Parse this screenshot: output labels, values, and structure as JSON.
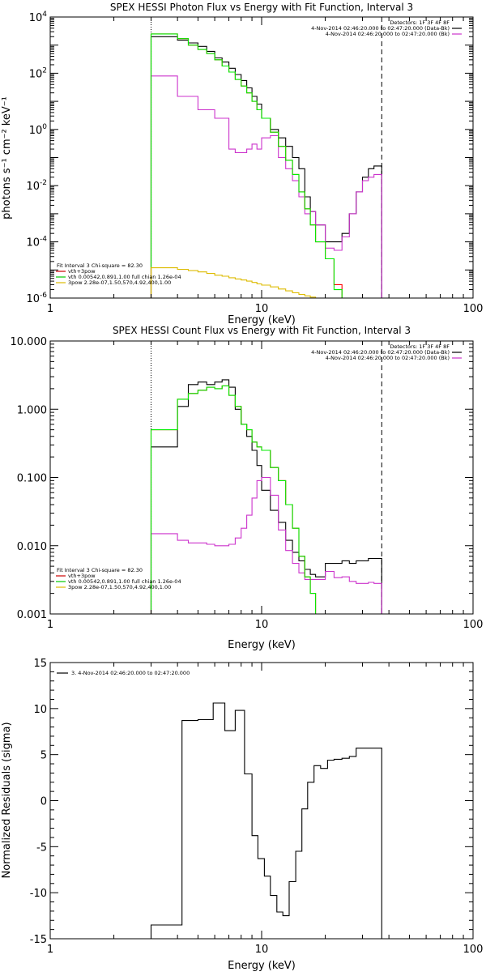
{
  "chart_data": [
    {
      "type": "line",
      "title": "SPEX HESSI Photon Flux vs Energy with Fit Function, Interval 3",
      "xlabel": "Energy (keV)",
      "ylabel": "photons s⁻¹ cm⁻² keV⁻¹",
      "xscale": "log",
      "yscale": "log",
      "xlim": [
        1,
        100
      ],
      "ylim": [
        1e-06,
        10000.0
      ],
      "xticks": [
        {
          "value": 1,
          "label": "1"
        },
        {
          "value": 10,
          "label": "10"
        },
        {
          "value": 100,
          "label": "100"
        }
      ],
      "yticks": [
        {
          "value": 1e-06,
          "base": "10",
          "exp": "-6"
        },
        {
          "value": 0.0001,
          "base": "10",
          "exp": "-4"
        },
        {
          "value": 0.01,
          "base": "10",
          "exp": "-2"
        },
        {
          "value": 1,
          "base": "10",
          "exp": "0"
        },
        {
          "value": 100,
          "base": "10",
          "exp": "2"
        },
        {
          "value": 10000.0,
          "base": "10",
          "exp": "4"
        }
      ],
      "vlines": [
        {
          "x": 3.0,
          "style": "dotted"
        },
        {
          "x": 37,
          "style": "dashed"
        }
      ],
      "legend_right": [
        "Detectors: 1F 3F 4F 8F",
        "4-Nov-2014 02:46:20.000 to 02:47:20.000 (Data-Bk)",
        "4-Nov-2014 02:46:20.000 to 02:47:20.000 (Bk)"
      ],
      "legend_left": [
        "Fit Interval 3   Chi-square = 82.30",
        "vth+3pow",
        "vth 0.00542,0.891,1.00  full chian 1.26e-04",
        "3pow 2.28e-07,1.50,570,4.92,400,1.00"
      ],
      "edges": [
        3.0,
        3.5,
        4.0,
        4.5,
        5.0,
        5.5,
        6.0,
        6.5,
        7.0,
        7.5,
        8.0,
        8.5,
        9.0,
        9.5,
        10.0,
        11.0,
        12.0,
        13.0,
        14.0,
        15.0,
        16.0,
        17.0,
        18.0,
        20.0,
        22.0,
        24.0,
        26.0,
        28.0,
        30.0,
        32.0,
        34.0,
        37.0
      ],
      "series": [
        {
          "name": "4-Nov-2014 02:46:20.000 to 02:47:20.000 (Data-Bk)",
          "color": "#000000",
          "values": [
            2000,
            2000,
            1500,
            1200,
            900,
            600,
            350,
            250,
            150,
            90,
            55,
            30,
            15,
            8,
            2.5,
            1.0,
            0.5,
            0.25,
            0.1,
            0.04,
            0.004,
            0.0012,
            0.0004,
            0.0001,
            0.0001,
            0.0002,
            0.001,
            0.006,
            0.02,
            0.04,
            0.05
          ]
        },
        {
          "name": "4-Nov-2014 02:46:20.000 to 02:47:20.000 (Bk)",
          "color": "#cc33cc",
          "values": [
            80,
            80,
            15,
            15,
            5,
            5,
            2.5,
            2.5,
            0.2,
            0.15,
            0.15,
            0.2,
            0.3,
            0.2,
            0.5,
            0.6,
            0.1,
            0.04,
            0.015,
            0.004,
            0.001,
            0.0012,
            0.0004,
            6e-05,
            5e-05,
            0.00015,
            0.001,
            0.006,
            0.015,
            0.02,
            0.025
          ]
        },
        {
          "name": "vth+3pow",
          "color": "#ff0000",
          "values": [
            2500,
            2500,
            1700,
            1000,
            700,
            500,
            300,
            180,
            110,
            60,
            35,
            20,
            10,
            5,
            2.5,
            0.8,
            0.25,
            0.08,
            0.025,
            0.006,
            0.0015,
            0.0004,
            0.0001,
            2.5e-05,
            3e-06,
            null,
            null,
            null,
            null,
            null,
            null
          ]
        },
        {
          "name": "vth 0.00542,0.891,1.00  full chian 1.26e-04",
          "color": "#00ee00",
          "values": [
            2500,
            2500,
            1700,
            1000,
            700,
            500,
            300,
            180,
            110,
            60,
            35,
            20,
            10,
            5,
            2.5,
            0.8,
            0.25,
            0.08,
            0.025,
            0.006,
            0.0015,
            0.0004,
            0.0001,
            2.5e-05,
            2e-06,
            null,
            null,
            null,
            null,
            null,
            null
          ]
        },
        {
          "name": "3pow 2.28e-07,1.50,570,4.92,400,1.00",
          "color": "#ddbb00",
          "values": [
            1.2e-05,
            1.2e-05,
            1.05e-05,
            9.5e-06,
            8.5e-06,
            7.5e-06,
            6.5e-06,
            6e-06,
            5.3e-06,
            4.8e-06,
            4.4e-06,
            4e-06,
            3.6e-06,
            3.2e-06,
            2.9e-06,
            2.5e-06,
            2.1e-06,
            1.8e-06,
            1.55e-06,
            1.35e-06,
            1.2e-06,
            1.08e-06,
            1e-06,
            null,
            null,
            null,
            null,
            null,
            null,
            null,
            null
          ]
        }
      ]
    },
    {
      "type": "line",
      "title": "SPEX HESSI Count Flux vs Energy with Fit Function, Interval 3",
      "xlabel": "Energy (keV)",
      "ylabel": "",
      "xscale": "log",
      "yscale": "log",
      "xlim": [
        1,
        100
      ],
      "ylim": [
        0.001,
        10
      ],
      "xticks": [
        {
          "value": 1,
          "label": "1"
        },
        {
          "value": 10,
          "label": "10"
        },
        {
          "value": 100,
          "label": "100"
        }
      ],
      "yticks": [
        {
          "value": 0.001,
          "label": "0.001"
        },
        {
          "value": 0.01,
          "label": "0.010"
        },
        {
          "value": 0.1,
          "label": "0.100"
        },
        {
          "value": 1,
          "label": "1.000"
        },
        {
          "value": 10,
          "label": "10.000"
        }
      ],
      "vlines": [
        {
          "x": 3.0,
          "style": "dotted"
        },
        {
          "x": 37,
          "style": "dashed"
        }
      ],
      "legend_right": [
        "Detectors: 1F 3F 4F 8F",
        "4-Nov-2014 02:46:20.000 to 02:47:20.000 (Data-Bk)",
        "4-Nov-2014 02:46:20.000 to 02:47:20.000 (Bk)"
      ],
      "legend_left": [
        "Fit Interval 3   Chi-square = 82.30",
        "vth+3pow",
        "vth 0.00542,0.891,1.00  full chian 1.26e-04",
        "3pow 2.28e-07,1.50,570,4.92,400,1.00"
      ],
      "edges": [
        3.0,
        3.5,
        4.0,
        4.5,
        5.0,
        5.5,
        6.0,
        6.5,
        7.0,
        7.5,
        8.0,
        8.5,
        9.0,
        9.5,
        10.0,
        11.0,
        12.0,
        13.0,
        14.0,
        15.0,
        16.0,
        17.0,
        18.0,
        20.0,
        22.0,
        24.0,
        26.0,
        28.0,
        30.0,
        32.0,
        34.0,
        37.0
      ],
      "series": [
        {
          "name": "4-Nov-2014 02:46:20.000 to 02:47:20.000 (Data-Bk)",
          "color": "#000000",
          "values": [
            0.28,
            0.28,
            1.1,
            2.3,
            2.5,
            2.3,
            2.5,
            2.7,
            2.1,
            1.0,
            0.6,
            0.4,
            0.25,
            0.15,
            0.065,
            0.033,
            0.022,
            0.012,
            0.008,
            0.006,
            0.0045,
            0.0038,
            0.0035,
            0.0055,
            0.0055,
            0.006,
            0.0055,
            0.006,
            0.006,
            0.0065,
            0.0065
          ]
        },
        {
          "name": "4-Nov-2014 02:46:20.000 to 02:47:20.000 (Bk)",
          "color": "#cc33cc",
          "values": [
            0.015,
            0.015,
            0.012,
            0.011,
            0.011,
            0.0105,
            0.01,
            0.01,
            0.0105,
            0.013,
            0.018,
            0.028,
            0.05,
            0.09,
            0.1,
            0.055,
            0.017,
            0.0085,
            0.0055,
            0.004,
            0.0032,
            0.0032,
            0.0032,
            0.0042,
            0.0034,
            0.0035,
            0.003,
            0.0028,
            0.0028,
            0.0029,
            0.0028
          ]
        },
        {
          "name": "vth+3pow",
          "color": "#ff0000",
          "values": [
            0.5,
            0.5,
            1.4,
            1.7,
            1.9,
            2.1,
            2.0,
            2.2,
            1.6,
            1.1,
            0.6,
            0.5,
            0.33,
            0.28,
            0.25,
            0.14,
            0.09,
            0.04,
            0.018,
            0.007,
            0.0035,
            0.002,
            0.0009,
            null,
            null,
            null,
            null,
            null,
            null,
            null,
            null
          ]
        },
        {
          "name": "vth 0.00542,0.891,1.00  full chian 1.26e-04",
          "color": "#00ee00",
          "values": [
            0.5,
            0.5,
            1.4,
            1.7,
            1.9,
            2.1,
            2.0,
            2.2,
            1.6,
            1.1,
            0.6,
            0.5,
            0.33,
            0.28,
            0.25,
            0.14,
            0.09,
            0.04,
            0.018,
            0.007,
            0.0035,
            0.002,
            0.0009,
            null,
            null,
            null,
            null,
            null,
            null,
            null,
            null
          ]
        }
      ]
    },
    {
      "type": "line",
      "title": "",
      "xlabel": "Energy (keV)",
      "ylabel": "Normalized Residuals (sigma)",
      "xscale": "log",
      "yscale": "linear",
      "xlim": [
        1,
        100
      ],
      "ylim": [
        -15,
        15
      ],
      "xticks": [
        {
          "value": 1,
          "label": "1"
        },
        {
          "value": 10,
          "label": "10"
        },
        {
          "value": 100,
          "label": "100"
        }
      ],
      "yticks": [
        {
          "value": -15,
          "label": "-15"
        },
        {
          "value": -10,
          "label": "-10"
        },
        {
          "value": -5,
          "label": "-5"
        },
        {
          "value": 0,
          "label": "0"
        },
        {
          "value": 5,
          "label": "5"
        },
        {
          "value": 10,
          "label": "10"
        },
        {
          "value": 15,
          "label": "15"
        }
      ],
      "legend_left": [
        "3.  4-Nov-2014 02:46:20.000 to 02:47:20.000"
      ],
      "edges": [
        3.0,
        4.2,
        5.0,
        5.9,
        6.7,
        7.5,
        8.3,
        9.0,
        9.6,
        10.3,
        11.0,
        11.8,
        12.6,
        13.5,
        14.5,
        15.5,
        16.5,
        17.7,
        19.0,
        20.5,
        22.0,
        24.0,
        26.0,
        28.0,
        30.0,
        33.0,
        37.0
      ],
      "series": [
        {
          "name": "3.  4-Nov-2014 02:46:20.000 to 02:47:20.000",
          "color": "#000000",
          "values": [
            -13.5,
            8.7,
            8.8,
            10.6,
            7.6,
            9.8,
            2.9,
            -3.8,
            -6.3,
            -8.2,
            -10.3,
            -12.1,
            -12.5,
            -8.8,
            -5.5,
            -0.9,
            2.0,
            3.8,
            3.5,
            4.4,
            4.5,
            4.6,
            4.8,
            5.7,
            5.7,
            5.7
          ]
        }
      ]
    }
  ]
}
